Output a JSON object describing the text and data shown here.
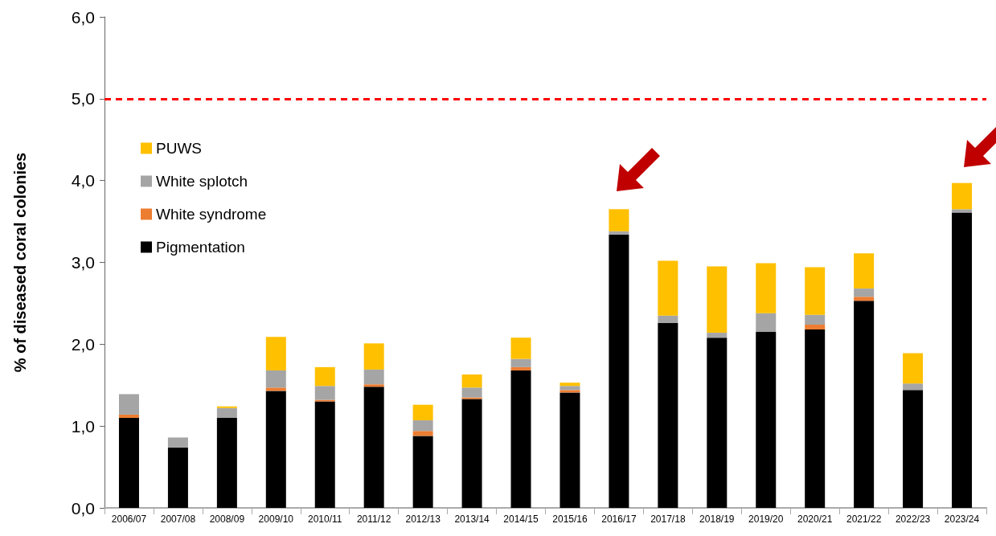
{
  "chart_data": {
    "type": "bar",
    "stacked": true,
    "ylabel": "% of diseased coral colonies",
    "categories": [
      "2006/07",
      "2007/08",
      "2008/09",
      "2009/10",
      "2010/11",
      "2011/12",
      "2012/13",
      "2013/14",
      "2014/15",
      "2015/16",
      "2016/17",
      "2017/18",
      "2018/19",
      "2019/20",
      "2020/21",
      "2021/22",
      "2022/23",
      "2023/24"
    ],
    "series": [
      {
        "name": "Pigmentation",
        "color": "#000000",
        "values": [
          1.1,
          0.74,
          1.1,
          1.43,
          1.3,
          1.48,
          0.88,
          1.33,
          1.68,
          1.41,
          3.34,
          2.26,
          2.08,
          2.15,
          2.18,
          2.53,
          1.44,
          3.61
        ]
      },
      {
        "name": "White syndrome",
        "color": "#ed7d31",
        "values": [
          0.04,
          0,
          0,
          0.04,
          0.02,
          0.03,
          0.06,
          0.02,
          0.04,
          0.03,
          0,
          0,
          0,
          0,
          0.06,
          0.05,
          0,
          0
        ]
      },
      {
        "name": "White splotch",
        "color": "#a5a5a5",
        "values": [
          0.25,
          0.12,
          0.12,
          0.21,
          0.17,
          0.18,
          0.13,
          0.12,
          0.1,
          0.05,
          0.04,
          0.09,
          0.06,
          0.23,
          0.12,
          0.1,
          0.08,
          0.04
        ]
      },
      {
        "name": "PUWS",
        "color": "#ffc000",
        "values": [
          0,
          0,
          0.02,
          0.41,
          0.23,
          0.32,
          0.19,
          0.16,
          0.26,
          0.04,
          0.27,
          0.67,
          0.81,
          0.61,
          0.58,
          0.43,
          0.37,
          0.32
        ]
      }
    ],
    "ylim": [
      0,
      6
    ],
    "yticks": [
      {
        "value": 0,
        "label": "0,0"
      },
      {
        "value": 1,
        "label": "1,0"
      },
      {
        "value": 2,
        "label": "2,0"
      },
      {
        "value": 3,
        "label": "3,0"
      },
      {
        "value": 4,
        "label": "4,0"
      },
      {
        "value": 5,
        "label": "5,0"
      },
      {
        "value": 6,
        "label": "6,0"
      }
    ],
    "ref_lines": [
      {
        "axis": "y",
        "value": 5,
        "color": "#ff0000",
        "line_style": "dashed"
      }
    ],
    "legend": "top left",
    "grid": false
  }
}
